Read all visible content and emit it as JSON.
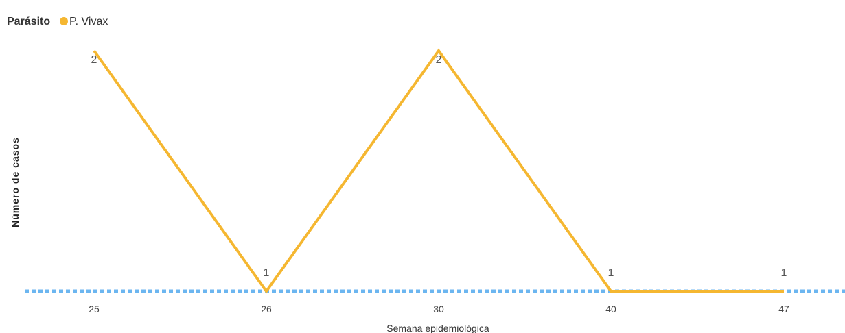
{
  "legend": {
    "title": "Parásito",
    "items": [
      {
        "label": "P. Vivax",
        "color": "#f5b731"
      }
    ]
  },
  "chart_data": {
    "type": "line",
    "categories": [
      "25",
      "26",
      "30",
      "40",
      "47"
    ],
    "series": [
      {
        "name": "P. Vivax",
        "values": [
          2,
          1,
          2,
          1,
          1
        ],
        "color": "#f5b731"
      }
    ],
    "data_labels": [
      "2",
      "1",
      "2",
      "1",
      "1"
    ],
    "xlabel": "Semana epidemiológica",
    "ylabel": "Número de casos",
    "ylim": [
      1,
      2
    ],
    "grid": false,
    "legend_position": "top-left",
    "baseline": {
      "value": 1,
      "style": "dotted",
      "color": "#6cb6f0"
    }
  }
}
